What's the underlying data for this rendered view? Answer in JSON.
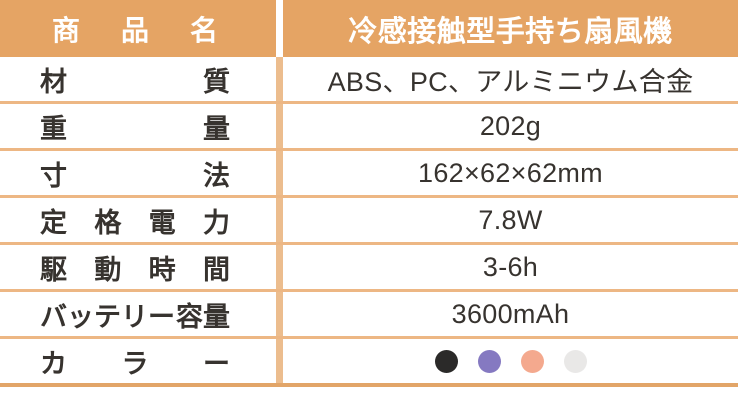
{
  "colors": {
    "accent_orange": "#e5a464",
    "column_divider": "#ecbd8e",
    "row_line": "#edb784",
    "bottom_line": "#e2a568",
    "body_text": "#37332f",
    "header_text": "#ffffff"
  },
  "table": {
    "header": {
      "label_segments": [
        "商",
        "品",
        "名"
      ],
      "label": "商品名",
      "value": "冷感接触型手持ち扇風機"
    },
    "rows": [
      {
        "label_segments": [
          "材",
          "質"
        ],
        "label": "材質",
        "value": "ABS、PC、アルミニウム合金"
      },
      {
        "label_segments": [
          "重",
          "量"
        ],
        "label": "重量",
        "value": "202g"
      },
      {
        "label_segments": [
          "寸",
          "法"
        ],
        "label": "寸法",
        "value": "162×62×62mm"
      },
      {
        "label_segments": [
          "定",
          "格",
          "電",
          "力"
        ],
        "label": "定格電力",
        "value": "7.8W"
      },
      {
        "label_segments": [
          "駆",
          "動",
          "時",
          "間"
        ],
        "label": "駆動時間",
        "value": "3-6h"
      },
      {
        "label_segments": [
          "バッテリー",
          "容量"
        ],
        "label": "バッテリー容量",
        "value": "3600mAh"
      },
      {
        "label_segments": [
          "カ",
          "ラ",
          "ー"
        ],
        "label": "カラー",
        "swatches": [
          "#2b2a29",
          "#8579c1",
          "#f4a98e",
          "#e9e8e7"
        ]
      }
    ]
  }
}
